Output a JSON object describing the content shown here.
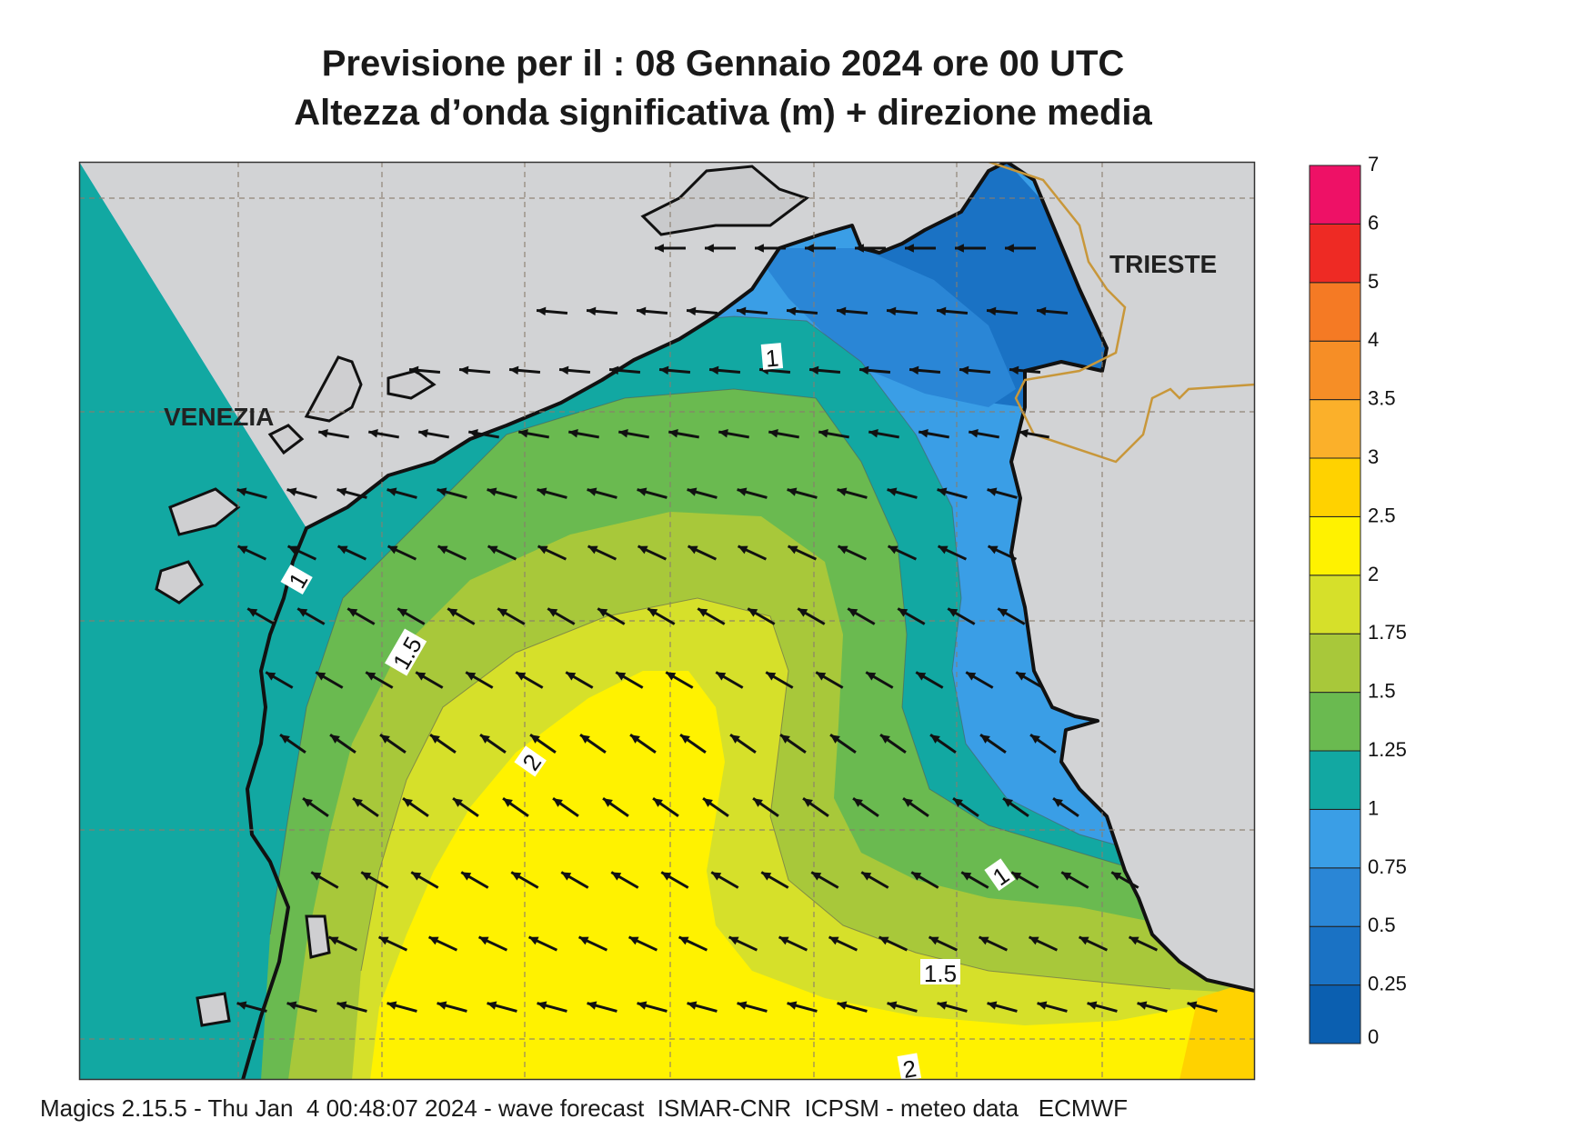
{
  "title": {
    "line1": "Previsione per il  :  08  Gennaio  2024   ore 00 UTC",
    "line2": "Altezza d’onda significativa (m) + direzione media"
  },
  "cities": [
    "VENEZIA",
    "TRIESTE"
  ],
  "contour_labels": [
    "1",
    "1",
    "1",
    "1.5",
    "1.5",
    "2",
    "2"
  ],
  "legend": {
    "ticks": [
      "0",
      "0.25",
      "0.5",
      "0.75",
      "1",
      "1.25",
      "1.5",
      "1.75",
      "2",
      "2.5",
      "3",
      "3.5",
      "4",
      "5",
      "6",
      "7"
    ],
    "colors": [
      "#0b5fb0",
      "#1a72c4",
      "#2a86d6",
      "#3a9ee6",
      "#12a8a2",
      "#6aba50",
      "#a8c83a",
      "#d6e02a",
      "#fff200",
      "#ffd200",
      "#fbb02a",
      "#f68e26",
      "#f57a24",
      "#ee2a24",
      "#ee1166"
    ]
  },
  "map_colors": {
    "land": "#d2d3d5",
    "coast": "#111111",
    "border": "#c8973a",
    "grid": "#8a7d6e",
    "arrow": "#111111"
  },
  "footer": "Magics 2.15.5 - Thu Jan  4 00:48:07 2024 - wave forecast  ISMAR-CNR  ICPSM - meteo data   ECMWF"
}
